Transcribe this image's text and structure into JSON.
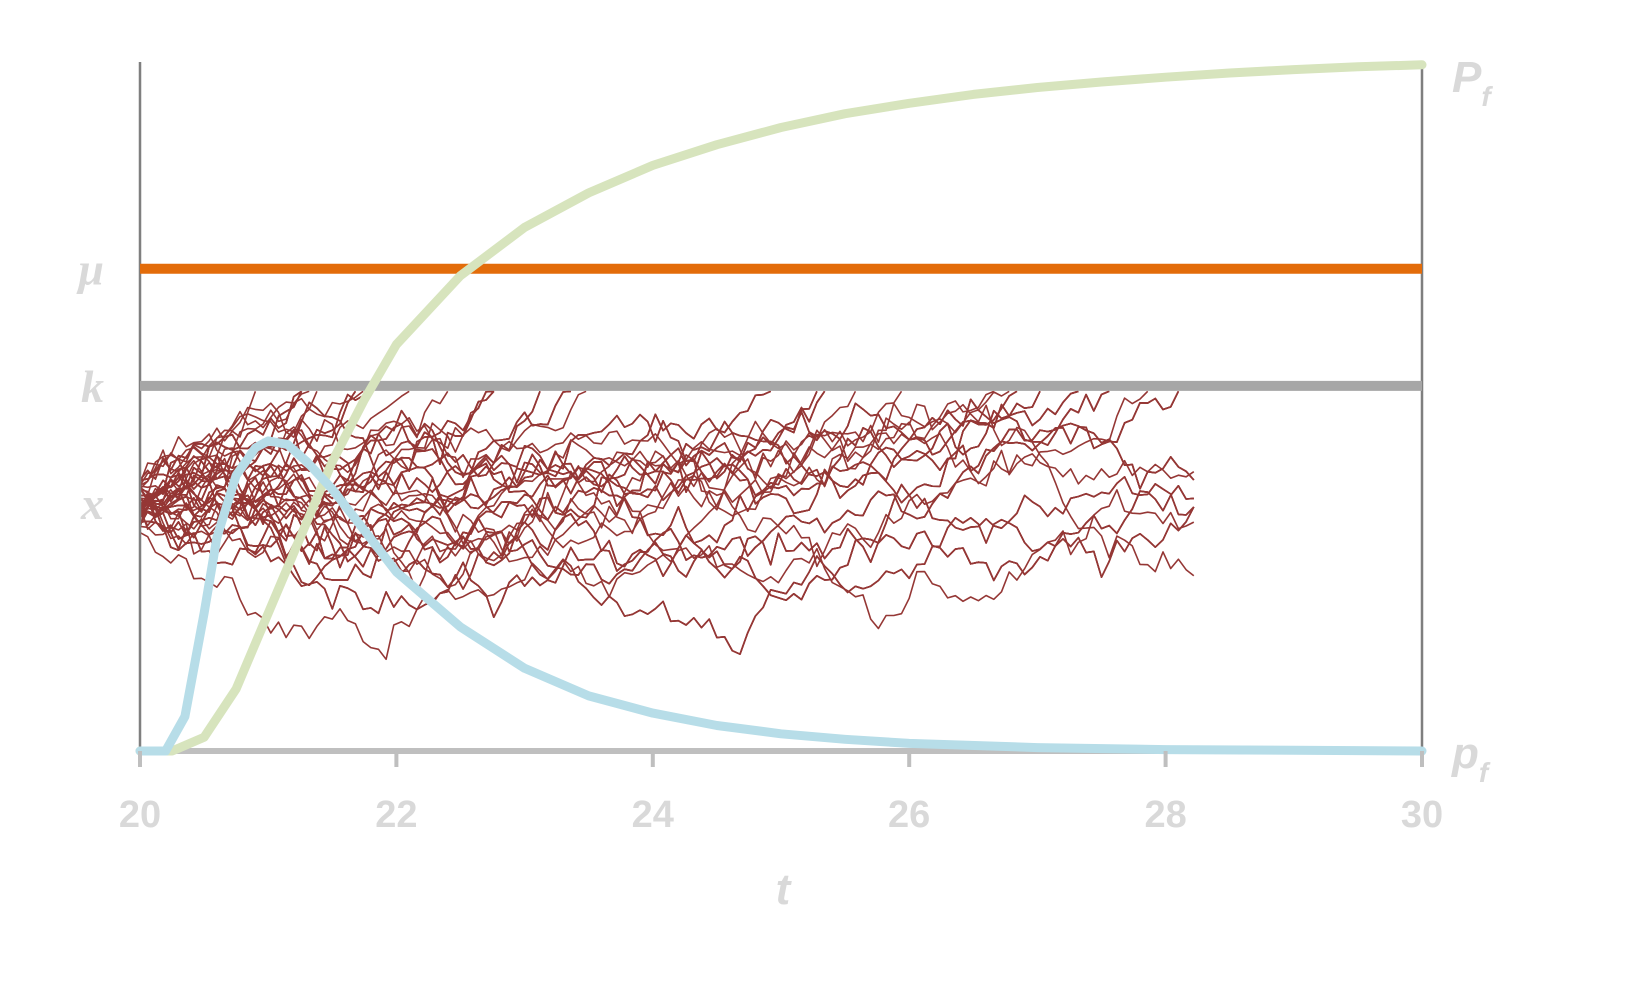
{
  "chart_data": {
    "type": "line",
    "title": "",
    "xlabel": "t",
    "ylabel": "",
    "xlim": [
      20,
      30
    ],
    "xticks": [
      20,
      22,
      24,
      26,
      28,
      30
    ],
    "grid": false,
    "legend": "none",
    "levels": [
      {
        "name": "mu",
        "label": "μ",
        "y": 0.7,
        "color": "#e36c0a"
      },
      {
        "name": "k",
        "label": "k",
        "y": 0.53,
        "color": "#a6a6a6"
      },
      {
        "name": "x",
        "label": "x",
        "y": 0.36,
        "color": "#953735"
      }
    ],
    "right_labels": {
      "Pf_main": "P",
      "Pf_sub": "f",
      "pf_main": "p",
      "pf_sub": "f"
    },
    "series": [
      {
        "name": "P_f",
        "color": "#d7e4bd",
        "x": [
          20.0,
          20.25,
          20.5,
          20.75,
          21.0,
          21.25,
          21.5,
          21.75,
          22.0,
          22.5,
          23.0,
          23.5,
          24.0,
          24.5,
          25.0,
          25.5,
          26.0,
          26.5,
          27.0,
          27.5,
          28.0,
          28.5,
          29.0,
          29.5,
          30.0
        ],
        "y": [
          0.0,
          0.0,
          0.02,
          0.09,
          0.2,
          0.31,
          0.42,
          0.51,
          0.59,
          0.69,
          0.76,
          0.81,
          0.85,
          0.88,
          0.905,
          0.925,
          0.94,
          0.953,
          0.963,
          0.971,
          0.978,
          0.984,
          0.989,
          0.993,
          0.996
        ]
      },
      {
        "name": "p_f",
        "color": "#b7dde8",
        "x": [
          20.0,
          20.2,
          20.35,
          20.5,
          20.6,
          20.75,
          20.9,
          21.0,
          21.15,
          21.3,
          21.5,
          21.75,
          22.0,
          22.5,
          23.0,
          23.5,
          24.0,
          24.5,
          25.0,
          25.5,
          26.0,
          27.0,
          28.0,
          29.0,
          30.0
        ],
        "y": [
          0.0,
          0.0,
          0.05,
          0.2,
          0.31,
          0.4,
          0.44,
          0.45,
          0.445,
          0.42,
          0.38,
          0.32,
          0.26,
          0.18,
          0.12,
          0.08,
          0.055,
          0.037,
          0.025,
          0.017,
          0.011,
          0.005,
          0.002,
          0.001,
          0.0
        ]
      }
    ],
    "sample_paths": {
      "color": "#953735",
      "count": 90,
      "start": 0.36
    }
  }
}
